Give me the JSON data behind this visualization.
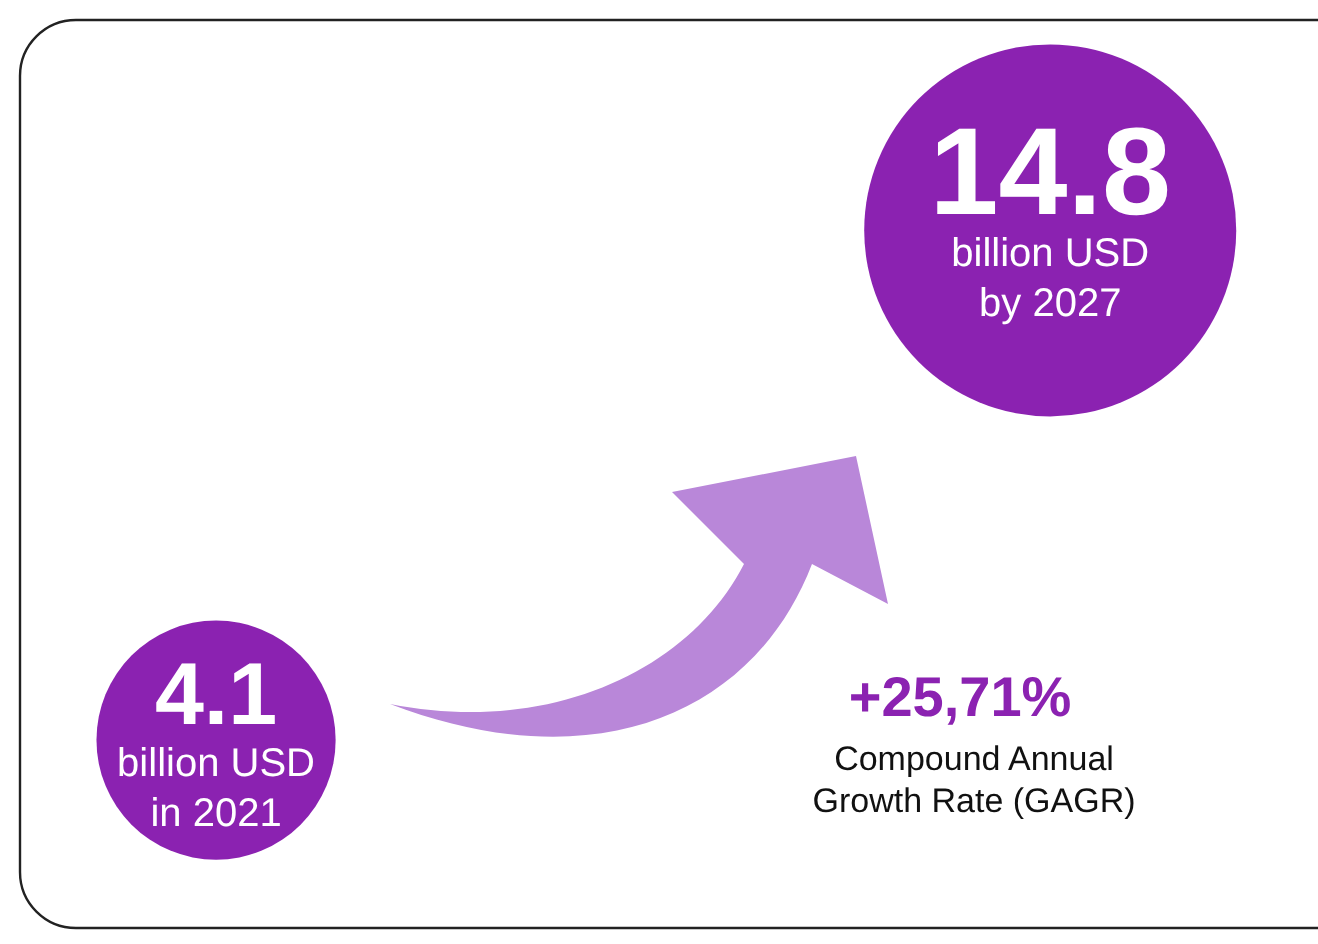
{
  "chart_data": {
    "type": "other",
    "categories": [
      "billion USD\nin 2021",
      "billion USD\nby 2027"
    ],
    "values": [
      4.1,
      14.8
    ],
    "colors": [
      "#8b22b1",
      "#8b22b1"
    ],
    "data_labels": true,
    "annotations": [
      "+25,71%",
      "Compound Annual\nGrowth Rate (GAGR)"
    ]
  }
}
